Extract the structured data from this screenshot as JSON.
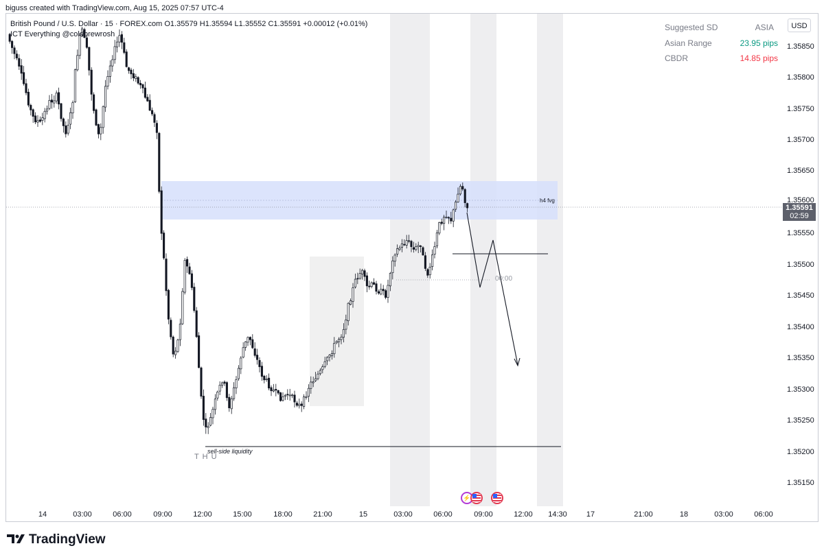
{
  "header": {
    "author_line": "biguss created with TradingView.com, Aug 15, 2025 07:57 UTC-4"
  },
  "legend": {
    "symbol": "British Pound / U.S. Dollar · 15 · FOREX.com",
    "o": "O1.35579",
    "h": "H1.35594",
    "l": "L1.35552",
    "c": "C1.35591",
    "change": "+0.00012 (+0.01%)",
    "indicator": "ICT Everything @coldbrewrosh"
  },
  "session_table": {
    "rows": [
      {
        "label": "Suggested SD",
        "value": "ASIA",
        "color": "#787b86"
      },
      {
        "label": "Asian Range",
        "value": "23.95 pips",
        "color": "#089981"
      },
      {
        "label": "CBDR",
        "value": "14.85 pips",
        "color": "#f23645"
      }
    ]
  },
  "currency_button": "USD",
  "price_axis": {
    "ticks": [
      "1.35850",
      "1.35800",
      "1.35750",
      "1.35700",
      "1.35650",
      "1.35600",
      "1.35550",
      "1.35500",
      "1.35450",
      "1.35400",
      "1.35350",
      "1.35300",
      "1.35250",
      "1.35200",
      "1.35150"
    ]
  },
  "last_price": {
    "value": "1.35591",
    "countdown": "02:59",
    "bg_color": "#5d606b"
  },
  "time_axis": {
    "ticks": [
      "14",
      "03:00",
      "06:00",
      "09:00",
      "12:00",
      "15:00",
      "18:00",
      "21:00",
      "15",
      "03:00",
      "06:00",
      "09:00",
      "12:00",
      "14:30",
      "17",
      "21:00",
      "18",
      "03:00",
      "06:00"
    ]
  },
  "annotations": {
    "fvg_label": "h4 fvg",
    "ssl_label": "sell-side liquidity",
    "day_label": "T H U",
    "midnight_label": "00:00"
  },
  "colors": {
    "up_candle": "#ffffff",
    "down_candle": "#131722",
    "fvg_zone": "#d6dffb",
    "session_band": "#eeeef0",
    "asia_box": "#f0f0f0",
    "event_icon_border": "#e2364e"
  },
  "events": [
    {
      "icon": "flash-event-icon"
    },
    {
      "icon": "us-flag-event-icon"
    },
    {
      "icon": "us-flag-event-icon"
    }
  ],
  "footer": {
    "brand": "TradingView"
  }
}
